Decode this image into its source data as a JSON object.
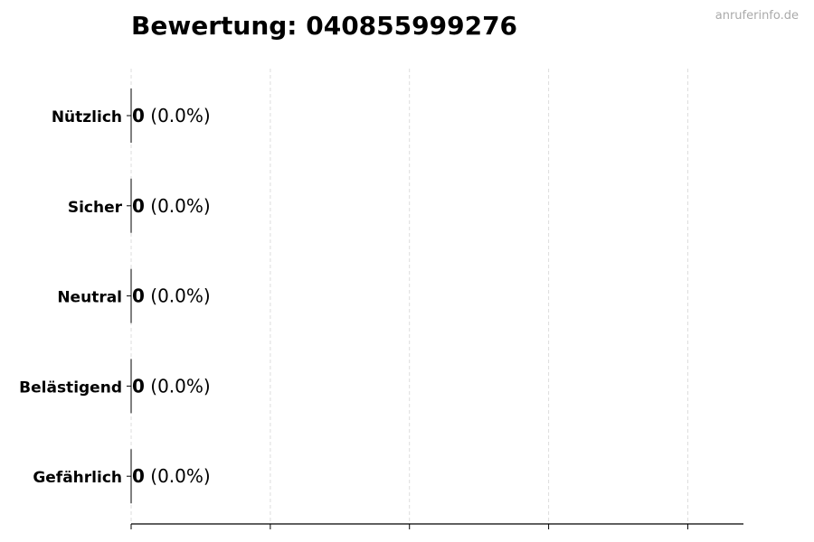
{
  "title": "Bewertung: 040855999276",
  "watermark": "anruferinfo.de",
  "chart_data": {
    "type": "bar",
    "orientation": "horizontal",
    "title": "Bewertung: 040855999276",
    "categories": [
      "Nützlich",
      "Sicher",
      "Neutral",
      "Belästigend",
      "Gefährlich"
    ],
    "values": [
      0,
      0,
      0,
      0,
      0
    ],
    "data_labels": [
      {
        "count": "0",
        "percent": "(0.0%)"
      },
      {
        "count": "0",
        "percent": "(0.0%)"
      },
      {
        "count": "0",
        "percent": "(0.0%)"
      },
      {
        "count": "0",
        "percent": "(0.0%)"
      },
      {
        "count": "0",
        "percent": "(0.0%)"
      }
    ],
    "xlim": [
      0,
      4.4
    ],
    "x_ticks": [
      0,
      1,
      2,
      3,
      4
    ],
    "x_tick_labels_shown": false,
    "grid": "vertical dashed",
    "colors": {
      "grid": "#dddddd",
      "axis": "#000000",
      "bar_edge": "#000000"
    }
  }
}
